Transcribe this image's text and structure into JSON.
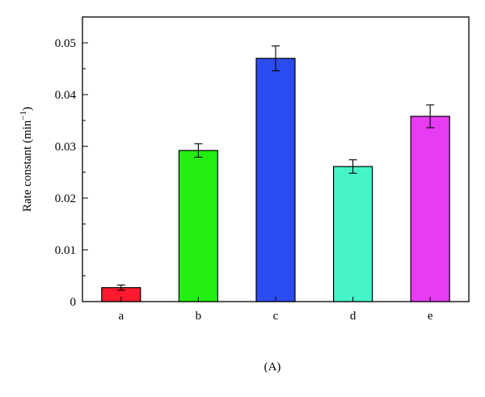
{
  "chart_data": {
    "type": "bar",
    "panel_label": "(A)",
    "xlabel": "",
    "ylabel": "Rate constant (min",
    "ylabel_superscript": "−1",
    "ylabel_close": ")",
    "ylim": [
      0,
      0.055
    ],
    "yticks": [
      {
        "value": 0,
        "label": "0"
      },
      {
        "value": 0.01,
        "label": "0.01"
      },
      {
        "value": 0.02,
        "label": "0.02"
      },
      {
        "value": 0.03,
        "label": "0.03"
      },
      {
        "value": 0.04,
        "label": "0.04"
      },
      {
        "value": 0.05,
        "label": "0.05"
      }
    ],
    "minor_tick_step": 0.005,
    "grid": false,
    "categories": [
      "a",
      "b",
      "c",
      "d",
      "e"
    ],
    "values": [
      0.0027,
      0.0292,
      0.047,
      0.0261,
      0.0358
    ],
    "errors": [
      0.0005,
      0.0013,
      0.0024,
      0.0013,
      0.0022
    ],
    "colors": [
      "#ff1a2e",
      "#22ee11",
      "#2b4df0",
      "#45f5c9",
      "#e63cf2"
    ]
  }
}
